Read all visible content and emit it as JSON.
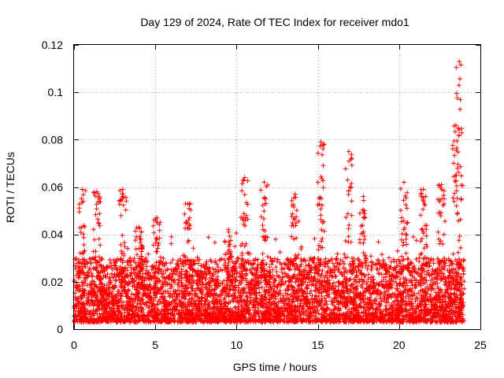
{
  "chart_data": {
    "type": "scatter",
    "title": "Day 129 of 2024, Rate Of TEC Index for receiver mdo1",
    "xlabel": "GPS time / hours",
    "ylabel": "ROTI / TECUs",
    "xlim": [
      0,
      25
    ],
    "ylim": [
      0,
      0.12
    ],
    "x_ticks": [
      {
        "value": 0,
        "label": "0"
      },
      {
        "value": 5,
        "label": "5"
      },
      {
        "value": 10,
        "label": "10"
      },
      {
        "value": 15,
        "label": "15"
      },
      {
        "value": 20,
        "label": "20"
      },
      {
        "value": 25,
        "label": "25"
      }
    ],
    "y_ticks": [
      {
        "value": 0,
        "label": "0"
      },
      {
        "value": 0.02,
        "label": "0.02"
      },
      {
        "value": 0.04,
        "label": "0.04"
      },
      {
        "value": 0.06,
        "label": "0.06"
      },
      {
        "value": 0.08,
        "label": "0.08"
      },
      {
        "value": 0.1,
        "label": "0.1"
      },
      {
        "value": 0.12,
        "label": "0.12"
      }
    ],
    "grid": true,
    "marker": "plus",
    "series_color": "#ff0000",
    "x_data_range": [
      0,
      24
    ],
    "typical_y_range": [
      0.003,
      0.03
    ],
    "peaks": [
      {
        "x": 0.5,
        "y": 0.059
      },
      {
        "x": 1.4,
        "y": 0.058
      },
      {
        "x": 3.0,
        "y": 0.059
      },
      {
        "x": 4.0,
        "y": 0.043
      },
      {
        "x": 5.1,
        "y": 0.047
      },
      {
        "x": 7.0,
        "y": 0.053
      },
      {
        "x": 9.5,
        "y": 0.042
      },
      {
        "x": 10.5,
        "y": 0.064
      },
      {
        "x": 11.7,
        "y": 0.062
      },
      {
        "x": 13.6,
        "y": 0.057
      },
      {
        "x": 15.2,
        "y": 0.079
      },
      {
        "x": 16.9,
        "y": 0.075
      },
      {
        "x": 17.8,
        "y": 0.056
      },
      {
        "x": 20.3,
        "y": 0.062
      },
      {
        "x": 21.5,
        "y": 0.059
      },
      {
        "x": 22.6,
        "y": 0.061
      },
      {
        "x": 23.5,
        "y": 0.086
      },
      {
        "x": 23.7,
        "y": 0.113
      }
    ]
  }
}
